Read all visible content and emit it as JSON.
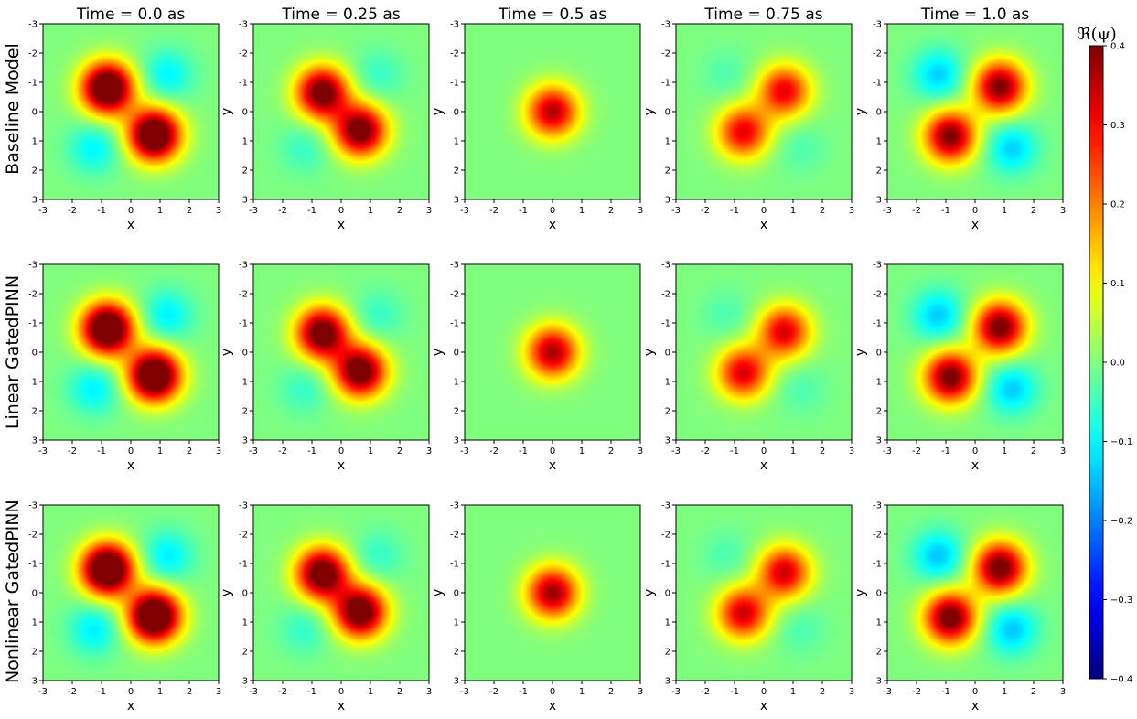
{
  "chart_data": {
    "type": "heatmap",
    "column_titles": [
      "Time = 0.0 as",
      "Time = 0.25 as",
      "Time = 0.5 as",
      "Time = 0.75 as",
      "Time = 1.0 as"
    ],
    "row_titles": [
      "Baseline Model",
      "Linear GatedPINN",
      "Nonlinear GatedPINN"
    ],
    "xlabel": "x",
    "ylabel": "y",
    "x_ticks": [
      "-3",
      "-2",
      "-1",
      "0",
      "1",
      "2",
      "3"
    ],
    "y_ticks": [
      "-3",
      "-2",
      "-1",
      "0",
      "1",
      "2",
      "3"
    ],
    "xlim": [
      -3,
      3
    ],
    "ylim": [
      -3,
      3
    ],
    "colorbar": {
      "label": "ℜ(ψ)",
      "range": [
        -0.4,
        0.4
      ],
      "ticks": [
        "0.4",
        "0.3",
        "0.2",
        "0.1",
        "0.0",
        "−0.1",
        "−0.2",
        "−0.3",
        "−0.4"
      ],
      "colormap": "jet"
    },
    "field_model": {
      "description_of_panels": "each panel shows Re(psi) on x,y in [-3,3]; positive lobes and negative lobes",
      "times": [
        0.0,
        0.25,
        0.5,
        0.75,
        1.0
      ],
      "lobes_per_time": [
        [
          {
            "x": -0.8,
            "y": -0.8,
            "a": 0.55
          },
          {
            "x": 0.8,
            "y": 0.8,
            "a": 0.55
          },
          {
            "x": -1.25,
            "y": 1.25,
            "a": -0.11
          },
          {
            "x": 1.25,
            "y": -1.25,
            "a": -0.11
          }
        ],
        [
          {
            "x": -0.65,
            "y": -0.65,
            "a": 0.46
          },
          {
            "x": 0.65,
            "y": 0.65,
            "a": 0.46
          },
          {
            "x": -1.25,
            "y": 1.25,
            "a": -0.06
          },
          {
            "x": 1.25,
            "y": -1.25,
            "a": -0.06
          }
        ],
        [
          {
            "x": 0.0,
            "y": 0.0,
            "a": 0.37
          }
        ],
        [
          {
            "x": -0.7,
            "y": 0.7,
            "a": 0.33
          },
          {
            "x": 0.7,
            "y": -0.7,
            "a": 0.33
          },
          {
            "x": -1.25,
            "y": -1.25,
            "a": -0.04
          },
          {
            "x": 1.25,
            "y": 1.25,
            "a": -0.04
          }
        ],
        [
          {
            "x": -0.85,
            "y": 0.85,
            "a": 0.42
          },
          {
            "x": 0.85,
            "y": -0.85,
            "a": 0.42
          },
          {
            "x": -1.25,
            "y": -1.25,
            "a": -0.14
          },
          {
            "x": 1.25,
            "y": 1.25,
            "a": -0.14
          }
        ]
      ],
      "lobe_width": 0.62
    }
  }
}
